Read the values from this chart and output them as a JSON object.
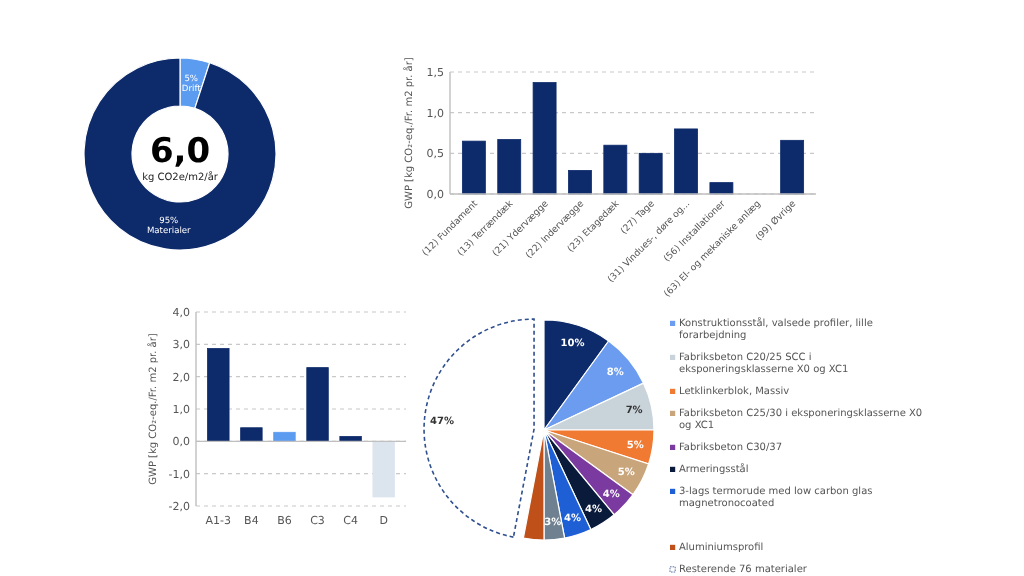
{
  "chart_data": [
    {
      "type": "donut",
      "categories": [
        "Drift",
        "Materialer"
      ],
      "values": [
        5,
        95
      ],
      "colors": [
        "#5b9bf0",
        "#0d2a6b"
      ],
      "value_labels": [
        "5%",
        "95%"
      ],
      "annotations": [
        "6,0",
        "kg CO2e/m2/år"
      ]
    },
    {
      "type": "bar",
      "ylabel": "GWP [kg CO₂-eq./Fr. m2 pr. år]",
      "categories": [
        "(12) Fundament",
        "(13) Terrændæk",
        "(21) Ydervægge",
        "(22) Indervægge",
        "(23) Etagedæk",
        "(27) Tage",
        "(31) Vindues-, døre og...",
        "(56) Installationer",
        "(63) El- og mekaniske anlæg",
        "(99) Øvrige"
      ],
      "values": [
        0.65,
        0.67,
        1.37,
        0.29,
        0.6,
        0.5,
        0.8,
        0.14,
        0,
        0.66
      ],
      "color": "#0d2a6b",
      "ylim": [
        0,
        1.5
      ],
      "yticks": [
        {
          "value": 0,
          "label": "0,0"
        },
        {
          "value": 0.5,
          "label": "0,5"
        },
        {
          "value": 1,
          "label": "1,0"
        },
        {
          "value": 1.5,
          "label": "1,5"
        }
      ],
      "grid": "y"
    },
    {
      "type": "bar",
      "ylabel": "GWP [kg CO₂-eq./Fr. m2 pr. år]",
      "categories": [
        "A1-3",
        "B4",
        "B6",
        "C3",
        "C4",
        "D"
      ],
      "values": [
        2.87,
        0.42,
        0.28,
        2.28,
        0.15,
        -1.72
      ],
      "colors": [
        "#0d2a6b",
        "#0d2a6b",
        "#5b9bf0",
        "#0d2a6b",
        "#0d2a6b",
        "#dce4ee"
      ],
      "ylim": [
        -2,
        4
      ],
      "yticks": [
        {
          "value": -2,
          "label": "-2,0"
        },
        {
          "value": -1,
          "label": "-1,0"
        },
        {
          "value": 0,
          "label": "0,0"
        },
        {
          "value": 1,
          "label": "1,0"
        },
        {
          "value": 2,
          "label": "2,0"
        },
        {
          "value": 3,
          "label": "3,0"
        },
        {
          "value": 4,
          "label": "4,0"
        }
      ],
      "grid": "y"
    },
    {
      "type": "pie",
      "categories": [
        null,
        "Konstruktionsstål, valsede profiler, lille forarbejdning",
        "Fabriksbeton C20/25 SCC i eksponeringsklasserne X0 og XC1",
        "Letklinkerblok, Massiv",
        "Fabriksbeton C25/30 i eksponeringsklasserne X0 og XC1",
        "Fabriksbeton C30/37",
        "Armeringsstål",
        "3-lags termorude med low carbon glas magnetronocoated",
        null,
        "Aluminiumsprofil",
        "Resterende 76 materialer"
      ],
      "values": [
        10,
        8,
        7,
        5,
        5,
        4,
        4,
        4,
        3,
        3,
        47
      ],
      "colors": [
        "#0d2a6b",
        "#6b9cf0",
        "#c9d3da",
        "#f07a32",
        "#c9a57c",
        "#7a3aa0",
        "#0a1a3a",
        "#1f5fd6",
        "#6f8190",
        "#c0501a",
        "#ffffff"
      ],
      "value_labels": [
        "10%",
        "8%",
        "7%",
        "5%",
        "5%",
        "4%",
        "4%",
        "4%",
        "3%",
        null,
        "47%"
      ],
      "legend": "right"
    }
  ]
}
